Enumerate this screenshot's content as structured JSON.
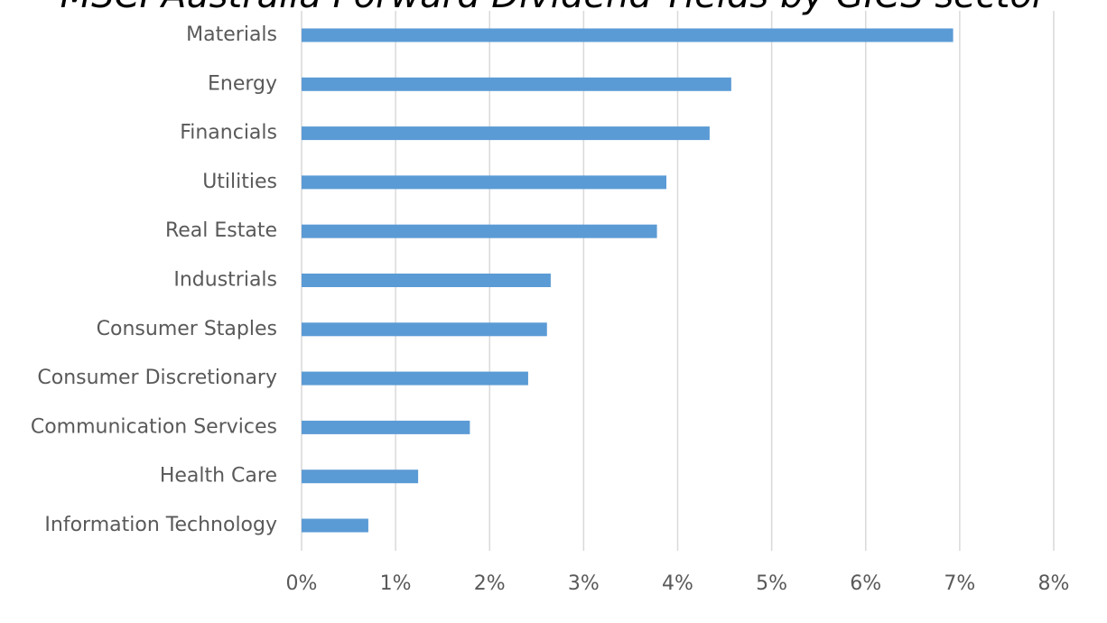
{
  "chart_data": {
    "type": "hbar",
    "title": "MSCI Australia Forward Dividend Yields by GICS sector",
    "categories": [
      "Materials",
      "Energy",
      "Financials",
      "Utilities",
      "Real Estate",
      "Industrials",
      "Consumer Staples",
      "Consumer Discretionary",
      "Communication Services",
      "Health Care",
      "Information Technology"
    ],
    "values": [
      6.93,
      4.57,
      4.34,
      3.88,
      3.78,
      2.65,
      2.61,
      2.41,
      1.79,
      1.24,
      0.71
    ],
    "color": "#5b9bd5",
    "xlim": [
      0,
      8
    ],
    "xticks": [
      {
        "value": 0,
        "label": "0%"
      },
      {
        "value": 1,
        "label": "1%"
      },
      {
        "value": 2,
        "label": "2%"
      },
      {
        "value": 3,
        "label": "3%"
      },
      {
        "value": 4,
        "label": "4%"
      },
      {
        "value": 5,
        "label": "5%"
      },
      {
        "value": 6,
        "label": "6%"
      },
      {
        "value": 7,
        "label": "7%"
      },
      {
        "value": 8,
        "label": "8%"
      }
    ],
    "grid": true
  }
}
